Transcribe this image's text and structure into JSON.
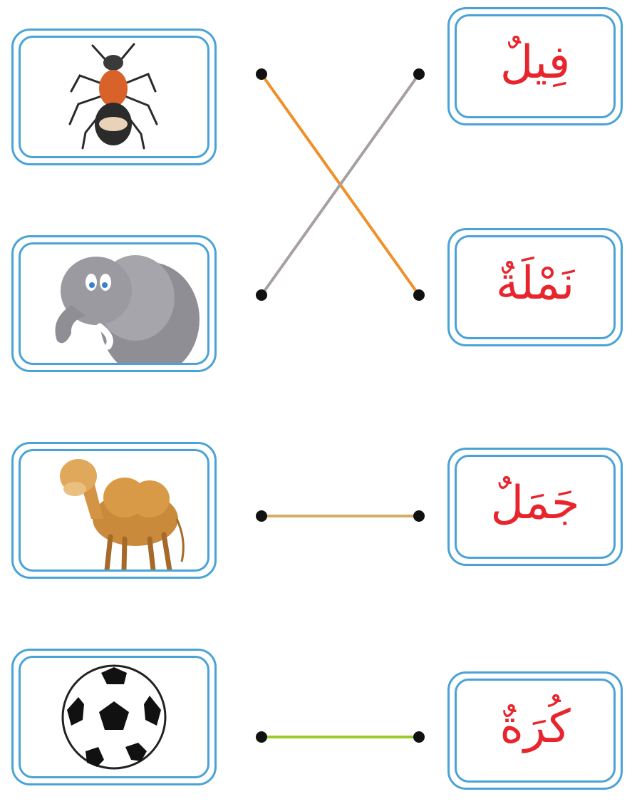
{
  "pictures": [
    {
      "icon": "ant-icon"
    },
    {
      "icon": "elephant-icon"
    },
    {
      "icon": "camel-icon"
    },
    {
      "icon": "football-icon"
    }
  ],
  "words": [
    {
      "text": "فِيلٌ"
    },
    {
      "text": "نَمْلَةٌ"
    },
    {
      "text": "جَمَلٌ"
    },
    {
      "text": "كُرَةٌ"
    }
  ],
  "connections": [
    {
      "from_picture": 0,
      "to_word": 1,
      "color": "#f0902a"
    },
    {
      "from_picture": 1,
      "to_word": 0,
      "color": "#a8a0a0"
    },
    {
      "from_picture": 2,
      "to_word": 2,
      "color": "#d6ac62"
    },
    {
      "from_picture": 3,
      "to_word": 3,
      "color": "#9ccc2a"
    }
  ],
  "colors": {
    "frame": "#4aa3d6",
    "word_text": "#e8242c",
    "dot": "#111111"
  }
}
